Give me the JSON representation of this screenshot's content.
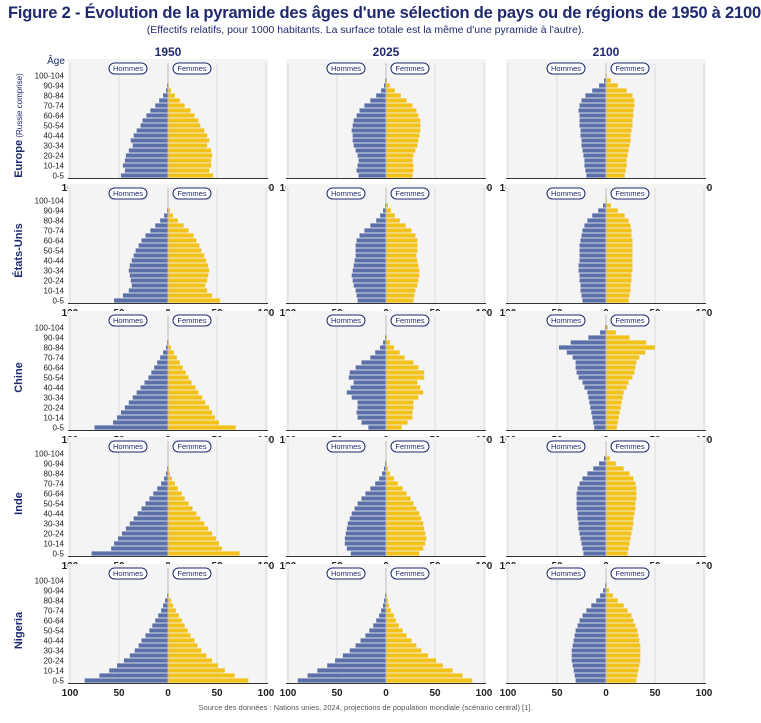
{
  "header": {
    "title": "Figure 2 - Évolution de la pyramide des âges d'une sélection de pays ou de régions de 1950 à 2100",
    "subtitle": "(Effectifs relatifs, pour 1000 habitants. La surface totale est la même d'une pyramide à l'autre).",
    "source": "Source des données : Nations unies, 2024, projections de population mondiale (scénario central) [1]."
  },
  "chart_data": {
    "type": "bar",
    "subtype": "population-pyramid-small-multiples",
    "age_axis_label": "Âge",
    "age_groups": [
      "0-5",
      "5-9",
      "10-14",
      "15-19",
      "20-24",
      "25-29",
      "30-34",
      "35-39",
      "40-44",
      "45-49",
      "50-54",
      "55-59",
      "60-64",
      "65-69",
      "70-74",
      "75-79",
      "80-84",
      "85-89",
      "90-94",
      "95-99",
      "100-104"
    ],
    "age_tick_labels": [
      "0-5",
      "10-14",
      "20-24",
      "30-34",
      "40-44",
      "50-54",
      "60-64",
      "70-74",
      "80-84",
      "90-94",
      "100-104"
    ],
    "x_ticks": [
      "100",
      "50",
      "0",
      "50",
      "100"
    ],
    "xlim": [
      -100,
      100
    ],
    "men_label": "Hommes",
    "women_label": "Femmes",
    "colors": {
      "men": "#5b6fa8",
      "women": "#f2c21a",
      "title": "#1f2a6e"
    },
    "years": [
      "1950",
      "2025",
      "2100"
    ],
    "regions": [
      {
        "name": "Europe",
        "sub": "(Russie comprise)"
      },
      {
        "name": "États-Unis",
        "sub": ""
      },
      {
        "name": "Chine",
        "sub": ""
      },
      {
        "name": "Inde",
        "sub": ""
      },
      {
        "name": "Nigeria",
        "sub": ""
      }
    ],
    "panels": [
      [
        {
          "men": [
            48,
            44,
            46,
            44,
            43,
            40,
            36,
            38,
            35,
            32,
            28,
            26,
            22,
            18,
            13,
            9,
            5,
            2,
            1,
            0,
            0
          ],
          "women": [
            46,
            42,
            44,
            44,
            45,
            44,
            40,
            42,
            40,
            37,
            33,
            31,
            27,
            23,
            17,
            12,
            7,
            3,
            1,
            0,
            0
          ]
        },
        {
          "men": [
            28,
            30,
            29,
            28,
            29,
            31,
            33,
            34,
            34,
            35,
            34,
            33,
            30,
            27,
            22,
            16,
            10,
            5,
            2,
            1,
            0
          ],
          "women": [
            27,
            28,
            28,
            27,
            28,
            30,
            32,
            33,
            34,
            35,
            35,
            35,
            33,
            31,
            27,
            21,
            15,
            9,
            4,
            1,
            0
          ]
        },
        {
          "men": [
            20,
            21,
            22,
            22,
            23,
            24,
            25,
            25,
            26,
            26,
            27,
            27,
            27,
            28,
            27,
            25,
            21,
            14,
            7,
            2,
            0
          ],
          "women": [
            19,
            20,
            21,
            21,
            22,
            23,
            24,
            25,
            25,
            26,
            27,
            27,
            28,
            28,
            29,
            29,
            27,
            21,
            12,
            5,
            1
          ]
        }
      ],
      [
        {
          "men": [
            55,
            46,
            40,
            37,
            38,
            39,
            40,
            39,
            37,
            35,
            33,
            30,
            27,
            23,
            18,
            13,
            8,
            4,
            1,
            0,
            0
          ],
          "women": [
            53,
            45,
            40,
            38,
            40,
            41,
            42,
            41,
            39,
            37,
            34,
            32,
            29,
            26,
            21,
            16,
            10,
            5,
            2,
            0,
            0
          ]
        },
        {
          "men": [
            29,
            30,
            31,
            33,
            34,
            35,
            34,
            33,
            32,
            31,
            31,
            31,
            30,
            27,
            22,
            16,
            10,
            6,
            3,
            1,
            0
          ],
          "women": [
            28,
            29,
            30,
            32,
            33,
            34,
            34,
            33,
            32,
            31,
            32,
            32,
            32,
            30,
            26,
            20,
            14,
            9,
            5,
            2,
            0
          ]
        },
        {
          "men": [
            24,
            25,
            26,
            26,
            27,
            27,
            28,
            28,
            27,
            27,
            27,
            27,
            26,
            25,
            24,
            22,
            19,
            14,
            8,
            3,
            0
          ],
          "women": [
            23,
            24,
            25,
            25,
            26,
            26,
            27,
            27,
            27,
            27,
            27,
            27,
            27,
            26,
            26,
            25,
            23,
            19,
            12,
            5,
            1
          ]
        }
      ],
      [
        {
          "men": [
            75,
            56,
            52,
            48,
            44,
            40,
            36,
            32,
            28,
            24,
            20,
            17,
            14,
            11,
            8,
            5,
            2,
            1,
            0,
            0,
            0
          ],
          "women": [
            69,
            52,
            48,
            45,
            42,
            38,
            35,
            31,
            28,
            24,
            21,
            18,
            15,
            12,
            9,
            6,
            3,
            1,
            0,
            0,
            0
          ]
        },
        {
          "men": [
            18,
            25,
            29,
            30,
            29,
            29,
            35,
            40,
            36,
            33,
            38,
            37,
            31,
            25,
            16,
            11,
            6,
            3,
            1,
            0,
            0
          ],
          "women": [
            16,
            22,
            27,
            27,
            28,
            28,
            33,
            38,
            35,
            32,
            39,
            39,
            33,
            28,
            19,
            14,
            8,
            4,
            1,
            0,
            0
          ]
        },
        {
          "men": [
            12,
            13,
            14,
            15,
            16,
            17,
            18,
            19,
            22,
            24,
            28,
            30,
            31,
            31,
            34,
            40,
            48,
            36,
            18,
            6,
            1
          ],
          "women": [
            11,
            12,
            13,
            14,
            15,
            16,
            17,
            18,
            21,
            23,
            27,
            29,
            30,
            31,
            34,
            40,
            50,
            41,
            24,
            10,
            2
          ]
        }
      ],
      [
        {
          "men": [
            78,
            58,
            55,
            51,
            47,
            43,
            39,
            35,
            31,
            27,
            23,
            19,
            15,
            11,
            7,
            4,
            2,
            1,
            0,
            0,
            0
          ],
          "women": [
            73,
            55,
            52,
            49,
            45,
            41,
            37,
            33,
            29,
            25,
            21,
            17,
            14,
            10,
            7,
            4,
            2,
            1,
            0,
            0,
            0
          ]
        },
        {
          "men": [
            36,
            40,
            42,
            42,
            41,
            40,
            39,
            37,
            35,
            32,
            29,
            25,
            21,
            16,
            11,
            7,
            4,
            2,
            1,
            0,
            0
          ],
          "women": [
            34,
            38,
            40,
            41,
            40,
            39,
            38,
            36,
            34,
            31,
            28,
            25,
            21,
            17,
            12,
            8,
            4,
            2,
            1,
            0,
            0
          ]
        },
        {
          "men": [
            23,
            24,
            25,
            26,
            27,
            28,
            28,
            29,
            29,
            30,
            30,
            30,
            30,
            29,
            27,
            24,
            19,
            13,
            7,
            2,
            0
          ],
          "women": [
            22,
            23,
            24,
            25,
            26,
            27,
            28,
            28,
            29,
            30,
            30,
            31,
            31,
            31,
            30,
            28,
            24,
            18,
            10,
            4,
            1
          ]
        }
      ],
      [
        {
          "men": [
            85,
            70,
            60,
            52,
            45,
            39,
            34,
            30,
            27,
            23,
            19,
            16,
            13,
            10,
            7,
            5,
            3,
            1,
            0,
            0,
            0
          ],
          "women": [
            82,
            68,
            58,
            51,
            45,
            39,
            34,
            30,
            27,
            23,
            20,
            17,
            14,
            11,
            8,
            5,
            3,
            1,
            0,
            0,
            0
          ]
        },
        {
          "men": [
            90,
            80,
            70,
            60,
            52,
            44,
            37,
            31,
            26,
            21,
            17,
            13,
            10,
            7,
            5,
            3,
            2,
            1,
            0,
            0,
            0
          ],
          "women": [
            88,
            78,
            68,
            58,
            51,
            43,
            36,
            31,
            26,
            21,
            17,
            13,
            10,
            8,
            5,
            3,
            2,
            1,
            0,
            0,
            0
          ]
        },
        {
          "men": [
            31,
            32,
            33,
            34,
            35,
            35,
            35,
            34,
            33,
            32,
            31,
            29,
            27,
            24,
            20,
            15,
            10,
            6,
            3,
            1,
            0
          ],
          "women": [
            31,
            32,
            33,
            34,
            35,
            35,
            35,
            35,
            34,
            33,
            32,
            30,
            28,
            26,
            22,
            18,
            12,
            7,
            3,
            1,
            0
          ]
        }
      ]
    ]
  }
}
